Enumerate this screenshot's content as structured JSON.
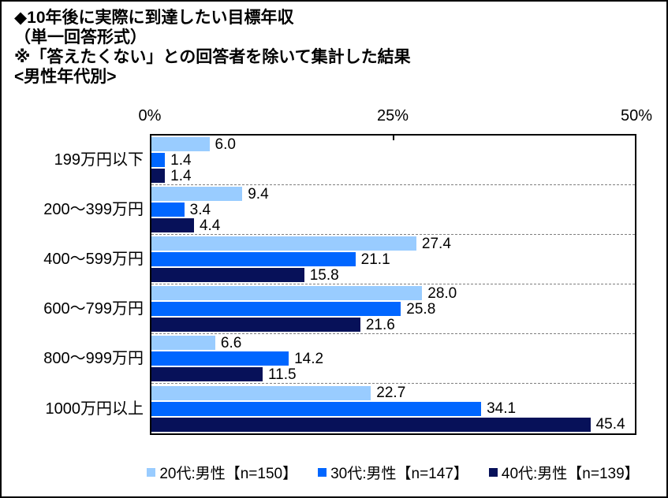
{
  "title_lines": [
    "◆10年後に実際に到達したい目標年収",
    "（単一回答形式）",
    "※「答えたくない」との回答者を除いて集計した結果",
    "<男性年代別>"
  ],
  "chart_data": {
    "type": "bar",
    "orientation": "horizontal",
    "title": "◆10年後に実際に到達したい目標年収（単一回答形式）※「答えたくない」との回答者を除いて集計した結果 <男性年代別>",
    "categories": [
      "199万円以下",
      "200〜399万円",
      "400〜599万円",
      "600〜799万円",
      "800〜999万円",
      "1000万円以上"
    ],
    "series": [
      {
        "name": "20代:男性【n=150】",
        "color": "#99CCFF",
        "values": [
          6.0,
          9.4,
          27.4,
          28.0,
          6.6,
          22.7
        ]
      },
      {
        "name": "30代:男性【n=147】",
        "color": "#0066FF",
        "values": [
          1.4,
          3.4,
          21.1,
          25.8,
          14.2,
          34.1
        ]
      },
      {
        "name": "40代:男性【n=139】",
        "color": "#071159",
        "values": [
          1.4,
          4.4,
          15.8,
          21.6,
          11.5,
          45.4
        ]
      }
    ],
    "xlim": [
      0,
      50
    ],
    "x_ticks": [
      "0%",
      "25%",
      "50%"
    ],
    "x_tick_positions_pct": [
      0,
      50,
      100
    ],
    "value_labels": true,
    "value_label_format": "one-decimal",
    "legend_position": "bottom",
    "gridlines": "dashed-gray-category-separators",
    "plot_border_color": "#000000",
    "separator_color": "#7f7f7f",
    "text_color": "#000000"
  }
}
